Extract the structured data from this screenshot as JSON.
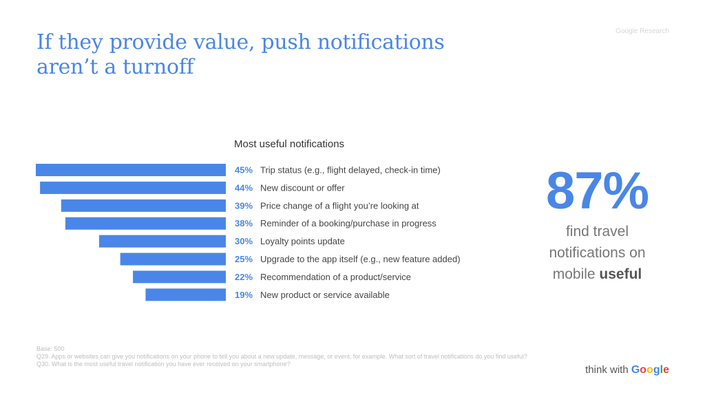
{
  "slide": {
    "title_lines": [
      "If they provide value, push notifications",
      "aren’t a turnoff"
    ],
    "source_tag": "Google Research"
  },
  "chart_data": {
    "type": "bar",
    "orientation": "horizontal",
    "title": "Most useful notifications",
    "value_suffix": "%",
    "categories": [
      "Trip status (e.g., flight delayed, check-in time)",
      "New discount or offer",
      "Price change of a flight you’re looking at",
      "Reminder of a booking/purchase in progress",
      "Loyalty points update",
      "Upgrade to the app itself (e.g., new feature added)",
      "Recommendation of a product/service",
      "New product or service available"
    ],
    "values": [
      45,
      44,
      39,
      38,
      30,
      25,
      22,
      19
    ],
    "xlim": [
      0,
      45
    ],
    "bar_color": "#4a86e8",
    "grid": false,
    "legend": "none"
  },
  "stat": {
    "value": "87%",
    "caption_lines": [
      "find travel",
      "notifications on"
    ],
    "caption_last_plain": "mobile ",
    "caption_last_bold": "useful"
  },
  "footnote": {
    "base": "Base: 500",
    "q29": "Q29. Apps or websites can give you notifications on your phone to tell you about a new update, message, or event, for example. What sort of travel notifications do you find useful?",
    "q30": "Q30. What is the most useful travel notification you have ever received on your smartphone?"
  },
  "brand": {
    "prefix": "think with ",
    "letters": [
      "G",
      "o",
      "o",
      "g",
      "l",
      "e"
    ]
  },
  "colors": {
    "accent": "#4a86e8",
    "text": "#444444",
    "muted": "#bdbdbd"
  }
}
